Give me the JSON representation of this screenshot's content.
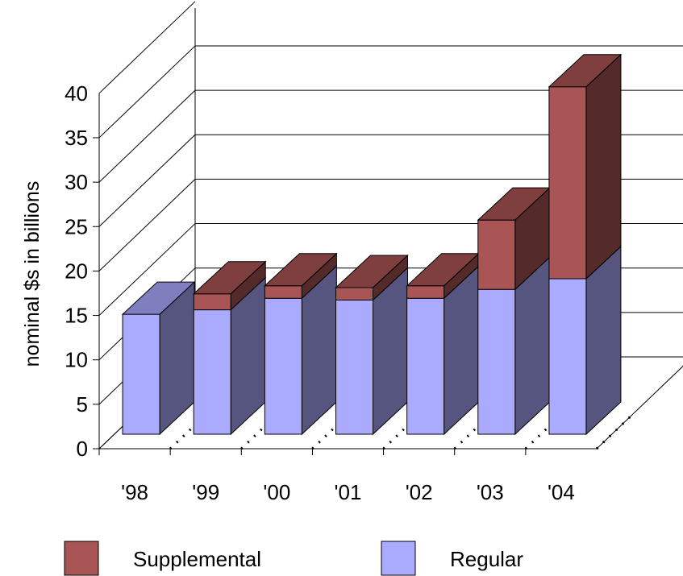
{
  "chart_data": {
    "type": "bar",
    "stacked": true,
    "three_d": true,
    "categories": [
      "'98",
      "'99",
      "'00",
      "'01",
      "'02",
      "'03",
      "'04"
    ],
    "series": [
      {
        "name": "Regular",
        "values": [
          13.5,
          14.0,
          15.3,
          15.1,
          15.3,
          16.3,
          17.5
        ],
        "color": "#aaaaff"
      },
      {
        "name": "Supplemental",
        "values": [
          0.0,
          1.8,
          1.4,
          1.4,
          1.4,
          7.8,
          21.6
        ],
        "color": "#aa5555"
      }
    ],
    "ylabel": "nominal $s in billions",
    "ylim": [
      0,
      40
    ],
    "yticks": [
      "0",
      "5",
      "10",
      "15",
      "20",
      "25",
      "30",
      "35",
      "40"
    ],
    "grid": true,
    "legend_position": "bottom"
  },
  "colors": {
    "regular_front": "#aaaaff",
    "regular_side": "#55557f",
    "regular_top": "#7f7fbf",
    "supplemental_front": "#aa5555",
    "supplemental_side": "#552a2a",
    "supplemental_top": "#7f3f3f"
  }
}
